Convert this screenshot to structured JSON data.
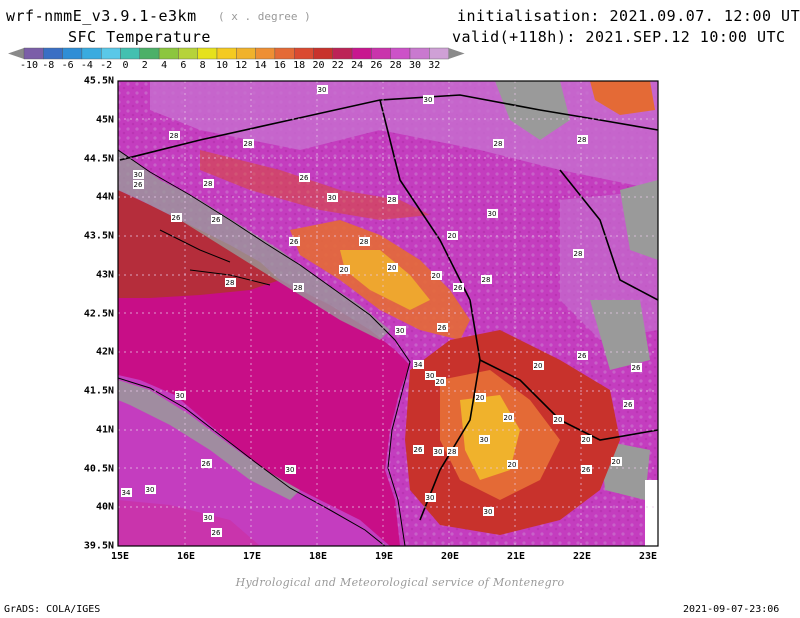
{
  "header": {
    "model": "wrf-nmmE_v3.9.1-e3km",
    "units": "( x . degree )",
    "init": "initialisation: 2021.09.07. 12:00 UTC",
    "valid": "valid(+118h): 2021.SEP.12 10:00 UTC"
  },
  "field_title": "SFC Temperature",
  "colorbar": {
    "labels": [
      "-10",
      "-8",
      "-6",
      "-4",
      "-2",
      "0",
      "2",
      "4",
      "6",
      "8",
      "10",
      "12",
      "14",
      "16",
      "18",
      "20",
      "22",
      "24",
      "26",
      "28",
      "30",
      "32"
    ],
    "colors": [
      "#7b5ea8",
      "#3a6fc4",
      "#2f8ed6",
      "#3aabdf",
      "#5ac8e8",
      "#43c0b0",
      "#4cb068",
      "#8cc63f",
      "#b6d33a",
      "#e6e11c",
      "#f4ca21",
      "#f0b22c",
      "#ee8f34",
      "#e46a36",
      "#da4a31",
      "#c8322c",
      "#bc2357",
      "#c8168f",
      "#c934ac",
      "#cc52c8",
      "#c979cf",
      "#cfa0d6"
    ]
  },
  "axes": {
    "lat_labels": [
      "45.5N",
      "45N",
      "44.5N",
      "44N",
      "43.5N",
      "43N",
      "42.5N",
      "42N",
      "41.5N",
      "41N",
      "40.5N",
      "40N",
      "39.5N"
    ],
    "lon_labels": [
      "15E",
      "16E",
      "17E",
      "18E",
      "19E",
      "20E",
      "21E",
      "22E",
      "23E"
    ]
  },
  "contour_labels": [
    "30",
    "30",
    "28",
    "28",
    "28",
    "28",
    "28",
    "26",
    "30",
    "28",
    "30",
    "30",
    "26",
    "26",
    "26",
    "28",
    "20",
    "20",
    "28",
    "20",
    "28",
    "20",
    "26",
    "28",
    "28",
    "30",
    "26",
    "26",
    "20",
    "26",
    "26",
    "34",
    "30",
    "20",
    "20",
    "20",
    "20",
    "20",
    "20",
    "30",
    "20",
    "26",
    "30",
    "28",
    "26",
    "26",
    "30",
    "26",
    "30",
    "30",
    "34",
    "30",
    "26",
    "30",
    "30"
  ],
  "footer": {
    "credit": "Hydrological and Meteorological service of Montenegro",
    "grads": "GrADS: COLA/IGES",
    "stamp": "2021-09-07-23:06"
  },
  "palette": {
    "sea_magenta": "#c80e87",
    "land_magenta": "#c43dbf",
    "warm_magenta": "#c8168f",
    "orange": "#e46a36",
    "red": "#c8322c",
    "gold": "#f0b22c",
    "coast_grey": "#9a9a9a",
    "light_purple": "#cc80d0"
  }
}
